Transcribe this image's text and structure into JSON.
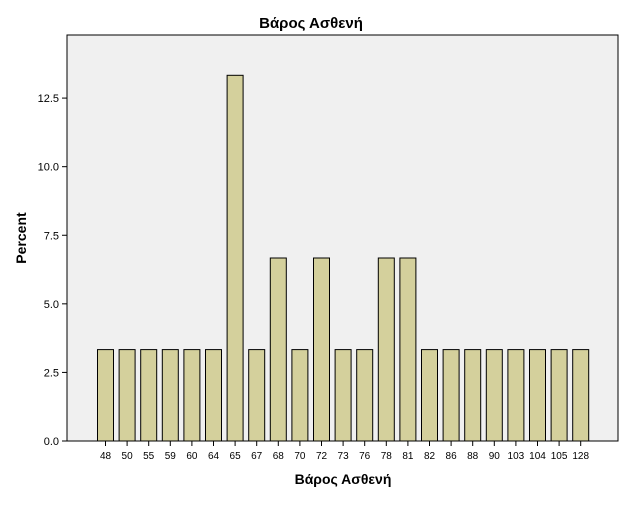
{
  "chart_data": {
    "type": "bar",
    "title": "Βάρος Ασθενή",
    "xlabel": "Βάρος Ασθενή",
    "ylabel": "Percent",
    "categories": [
      "48",
      "50",
      "55",
      "59",
      "60",
      "64",
      "65",
      "67",
      "68",
      "70",
      "72",
      "73",
      "76",
      "78",
      "81",
      "82",
      "86",
      "88",
      "90",
      "103",
      "104",
      "105",
      "128"
    ],
    "values": [
      3.33,
      3.33,
      3.33,
      3.33,
      3.33,
      3.33,
      13.33,
      3.33,
      6.67,
      3.33,
      6.67,
      3.33,
      3.33,
      6.67,
      6.67,
      3.33,
      3.33,
      3.33,
      3.33,
      3.33,
      3.33,
      3.33,
      3.33
    ],
    "ylim": [
      0,
      14.8
    ],
    "yticks": [
      "0.0",
      "2.5",
      "5.0",
      "7.5",
      "10.0",
      "12.5"
    ],
    "grid": false,
    "colors": {
      "bar_fill": "#d4d09c",
      "bar_stroke": "#000000",
      "plot_background": "#f0f0f0",
      "axis": "#000000"
    }
  }
}
